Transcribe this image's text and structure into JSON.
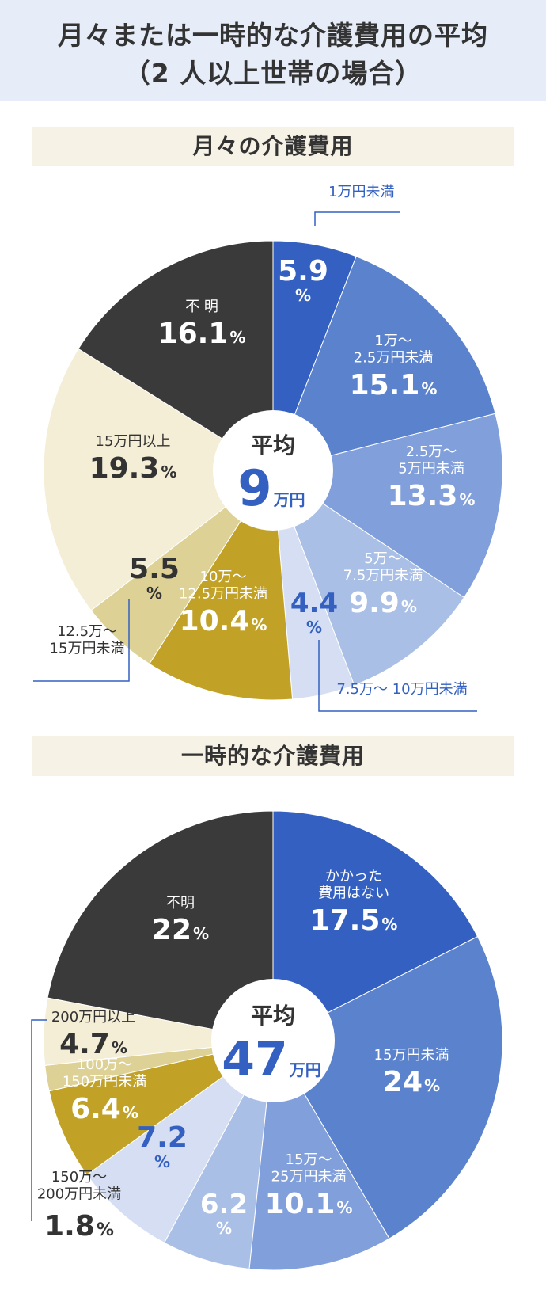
{
  "header": {
    "line1": "月々または一時的な介護費用の平均",
    "line2": "（2 人以上世帯の場合）"
  },
  "colors": {
    "header_bg": "#e6edf8",
    "section_bg": "#f7f2e6",
    "blue_dark": "#3461c1",
    "blue_mid": "#5b82cc",
    "blue_light": "#819fda",
    "blue_pale": "#aabfe5",
    "blue_paler": "#d5def2",
    "gold": "#c1a227",
    "tan": "#ddd196",
    "cream": "#f4eed6",
    "black": "#3a3a3a"
  },
  "chart_data": [
    {
      "type": "pie",
      "title": "月々の介護費用",
      "center_label": "平均",
      "center_value": "9",
      "center_unit": "万円",
      "slices": [
        {
          "label": "1万円未満",
          "value": 5.9,
          "color": "#3461c1",
          "label_color": "#ffffff"
        },
        {
          "label": "1万～\n2.5万円未満",
          "value": 15.1,
          "color": "#5b82cc",
          "label_color": "#ffffff"
        },
        {
          "label": "2.5万～\n5万円未満",
          "value": 13.3,
          "color": "#819fda",
          "label_color": "#ffffff"
        },
        {
          "label": "5万～\n7.5万円未満",
          "value": 9.9,
          "color": "#aabfe5",
          "label_color": "#ffffff"
        },
        {
          "label": "7.5万～ 10万円未満",
          "value": 4.4,
          "color": "#d5def2",
          "label_color": "#3461c1"
        },
        {
          "label": "10万～\n12.5万円未満",
          "value": 10.4,
          "color": "#c1a227",
          "label_color": "#ffffff"
        },
        {
          "label": "12.5万～\n15万円未満",
          "value": 5.5,
          "color": "#ddd196",
          "label_color": "#333333"
        },
        {
          "label": "15万円以上",
          "value": 19.3,
          "color": "#f4eed6",
          "label_color": "#333333"
        },
        {
          "label": "不 明",
          "value": 16.1,
          "color": "#3a3a3a",
          "label_color": "#ffffff"
        }
      ]
    },
    {
      "type": "pie",
      "title": "一時的な介護費用",
      "center_label": "平均",
      "center_value": "47",
      "center_unit": "万円",
      "slices": [
        {
          "label": "かかった\n費用はない",
          "value": 17.5,
          "color": "#3461c1",
          "label_color": "#ffffff"
        },
        {
          "label": "15万円未満",
          "value": 24,
          "color": "#5b82cc",
          "label_color": "#ffffff"
        },
        {
          "label": "15万～\n25万円未満",
          "value": 10.1,
          "color": "#819fda",
          "label_color": "#ffffff"
        },
        {
          "label": "",
          "value": 6.2,
          "color": "#aabfe5",
          "label_color": "#ffffff"
        },
        {
          "label": "",
          "value": 7.2,
          "color": "#d5def2",
          "label_color": "#3461c1"
        },
        {
          "label": "100万～\n150万円未満",
          "value": 6.4,
          "color": "#c1a227",
          "label_color": "#ffffff"
        },
        {
          "label": "150万～\n200万円未満",
          "value": 1.8,
          "color": "#ddd196",
          "label_color": "#333333"
        },
        {
          "label": "200万円以上",
          "value": 4.7,
          "color": "#f4eed6",
          "label_color": "#333333"
        },
        {
          "label": "不明",
          "value": 22,
          "color": "#3a3a3a",
          "label_color": "#ffffff"
        }
      ]
    }
  ]
}
